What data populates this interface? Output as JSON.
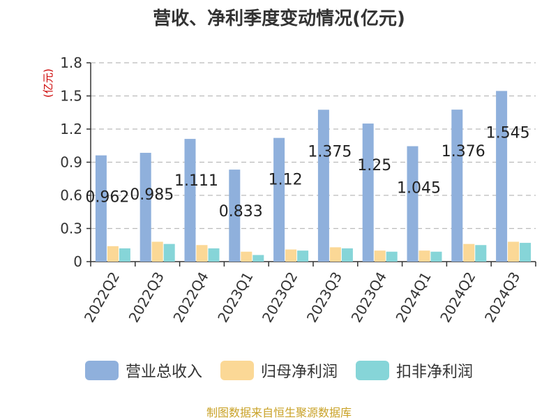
{
  "chart_data": {
    "type": "bar",
    "title": "营收、净利季度变动情况(亿元)",
    "unit_label": "(亿元)",
    "categories": [
      "2022Q2",
      "2022Q3",
      "2022Q4",
      "2023Q1",
      "2023Q2",
      "2023Q3",
      "2023Q4",
      "2024Q1",
      "2024Q2",
      "2024Q3"
    ],
    "ylim": [
      0,
      1.8
    ],
    "yticks": [
      "0",
      "0.3",
      "0.6",
      "0.9",
      "1.2",
      "1.5",
      "1.8"
    ],
    "grid": true,
    "legend_position": "bottom",
    "series": [
      {
        "name": "营业总收入",
        "color": "#8fb0dc",
        "values": [
          0.962,
          0.985,
          1.111,
          0.833,
          1.12,
          1.375,
          1.25,
          1.045,
          1.376,
          1.545
        ],
        "labels": [
          "0.962",
          "0.985",
          "1.111",
          "0.833",
          "1.12",
          "1.375",
          "1.25",
          "1.045",
          "1.376",
          "1.545"
        ]
      },
      {
        "name": "归母净利润",
        "color": "#fbd896",
        "values": [
          0.14,
          0.18,
          0.15,
          0.09,
          0.11,
          0.13,
          0.1,
          0.1,
          0.16,
          0.18
        ]
      },
      {
        "name": "扣非净利润",
        "color": "#86d5d8",
        "values": [
          0.12,
          0.16,
          0.12,
          0.06,
          0.1,
          0.12,
          0.09,
          0.09,
          0.15,
          0.17
        ]
      }
    ]
  },
  "source": "制图数据来自恒生聚源数据库"
}
